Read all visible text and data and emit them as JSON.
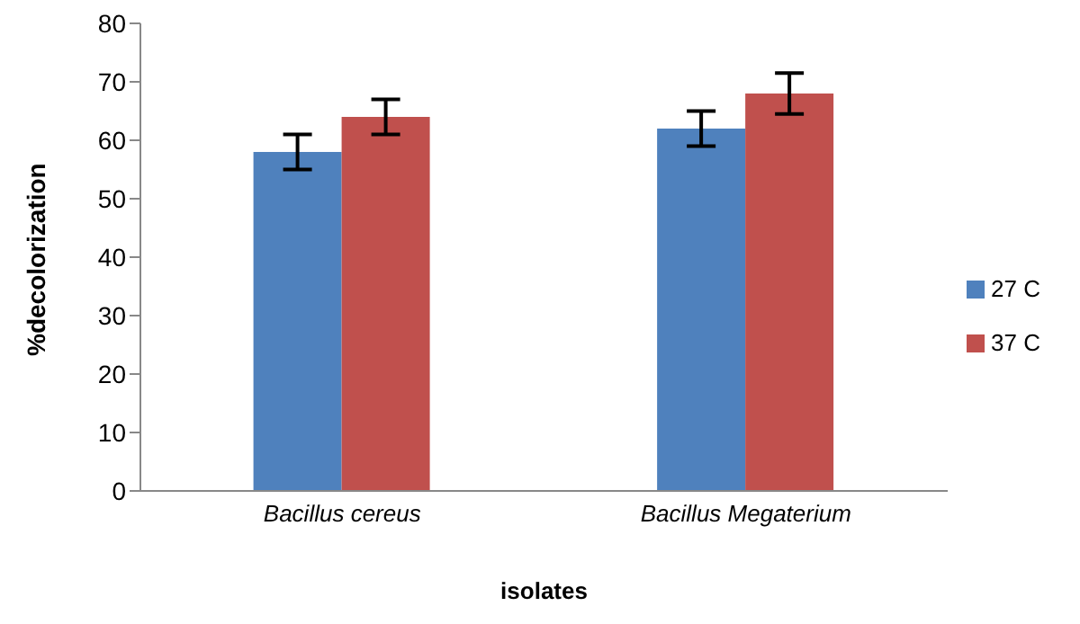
{
  "chart_data": {
    "type": "bar",
    "xlabel": "isolates",
    "ylabel": "%decolorization",
    "categories": [
      "Bacillus cereus",
      "Bacillus Megaterium"
    ],
    "series": [
      {
        "name": "27 C",
        "color": "#4f81bd",
        "values": [
          58,
          62
        ],
        "errors": [
          3,
          3
        ]
      },
      {
        "name": "37 C",
        "color": "#c0504d",
        "values": [
          64,
          68
        ],
        "errors": [
          3,
          3.5
        ]
      }
    ],
    "ylim": [
      0,
      80
    ],
    "yticks": [
      0,
      10,
      20,
      30,
      40,
      50,
      60,
      70,
      80
    ],
    "grid": false,
    "legend": "right"
  }
}
